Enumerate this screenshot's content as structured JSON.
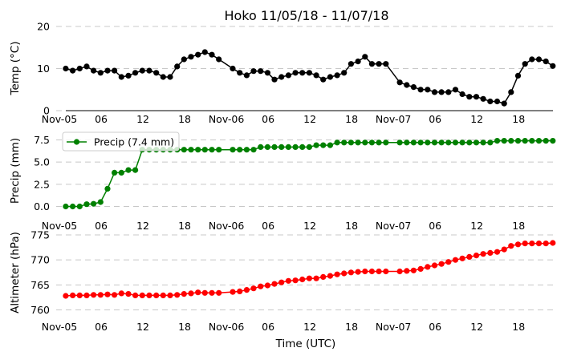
{
  "title": "Hoko 11/05/18 - 11/07/18",
  "xlabel": "Time (UTC)",
  "x_tick_labels": [
    "Nov-05",
    "06",
    "12",
    "18",
    "Nov-06",
    "06",
    "12",
    "18",
    "Nov-07",
    "06",
    "12",
    "18"
  ],
  "x_tick_times": [
    "2018-11-05T00:00",
    "2018-11-05T06:00",
    "2018-11-05T12:00",
    "2018-11-05T18:00",
    "2018-11-06T00:00",
    "2018-11-06T06:00",
    "2018-11-06T12:00",
    "2018-11-06T18:00",
    "2018-11-07T00:00",
    "2018-11-07T06:00",
    "2018-11-07T12:00",
    "2018-11-07T18:00"
  ],
  "colors": {
    "temp": "#000000",
    "precip": "#008000",
    "altimeter": "#ff0000",
    "grid": "#c8c8c8"
  },
  "chart_data": [
    {
      "type": "line",
      "ylabel": "Temp (°C)",
      "ylim": [
        0,
        20
      ],
      "yticks": [
        "0",
        "10",
        "20"
      ],
      "grid": true,
      "series": [
        {
          "values": [
            10,
            9.5,
            10,
            10.5,
            9.5,
            9,
            9.5,
            9.5,
            8,
            8.3,
            9,
            9.5,
            9.5,
            9,
            8,
            8,
            10.5,
            12.2,
            12.8,
            13.3,
            13.9,
            13.3,
            12.2,
            10,
            9,
            8.4,
            9.4,
            9.4,
            9,
            7.4,
            8,
            8.4,
            9,
            9,
            9,
            8.4,
            7.4,
            8,
            8.4,
            9,
            11.1,
            11.7,
            12.8,
            11.1,
            11.1,
            11.1,
            6.7,
            6.1,
            5.6,
            5,
            5,
            4.4,
            4.4,
            4.4,
            5,
            3.9,
            3.3,
            3.3,
            2.8,
            2.2,
            2.2,
            1.7,
            4.4,
            8.3,
            11.1,
            12.2,
            12.2,
            11.7,
            10.6
          ]
        }
      ]
    },
    {
      "type": "line",
      "ylabel": "Precip (mm)",
      "yticks": [
        "0.0",
        "2.5",
        "5.0",
        "7.5"
      ],
      "grid": true,
      "legend": "top-left",
      "series": [
        {
          "name": "Precip (7.4 mm)",
          "values": [
            0,
            0,
            0,
            0.25,
            0.3,
            0.5,
            2.0,
            3.8,
            3.8,
            4.1,
            4.1,
            6.4,
            6.4,
            6.4,
            6.4,
            6.4,
            6.4,
            6.4,
            6.4,
            6.4,
            6.4,
            6.4,
            6.4,
            6.4,
            6.4,
            6.4,
            6.4,
            6.7,
            6.7,
            6.7,
            6.7,
            6.7,
            6.7,
            6.7,
            6.7,
            6.9,
            6.9,
            6.9,
            7.2,
            7.2,
            7.2,
            7.2,
            7.2,
            7.2,
            7.2,
            7.2,
            7.2,
            7.2,
            7.2,
            7.2,
            7.2,
            7.2,
            7.2,
            7.2,
            7.2,
            7.2,
            7.2,
            7.2,
            7.2,
            7.2,
            7.4,
            7.4,
            7.4,
            7.4,
            7.4,
            7.4,
            7.4,
            7.4,
            7.4
          ]
        }
      ]
    },
    {
      "type": "line",
      "ylabel": "Altimeter (hPa)",
      "yticks": [
        "760",
        "765",
        "770",
        "775"
      ],
      "grid": true,
      "series": [
        {
          "values": [
            762.8,
            762.9,
            762.9,
            762.9,
            763.0,
            763.0,
            763.1,
            763.0,
            763.3,
            763.2,
            762.9,
            762.9,
            762.9,
            762.9,
            762.9,
            762.9,
            763.0,
            763.2,
            763.3,
            763.5,
            763.4,
            763.4,
            763.4,
            763.6,
            763.7,
            764.0,
            764.3,
            764.7,
            764.9,
            765.2,
            765.5,
            765.8,
            765.9,
            766.1,
            766.3,
            766.3,
            766.6,
            766.8,
            767.1,
            767.3,
            767.5,
            767.6,
            767.7,
            767.7,
            767.7,
            767.7,
            767.7,
            767.8,
            767.9,
            768.2,
            768.6,
            768.9,
            769.2,
            769.6,
            770.0,
            770.3,
            770.6,
            770.9,
            771.2,
            771.4,
            771.6,
            772.1,
            772.8,
            773.1,
            773.3,
            773.3,
            773.3,
            773.3,
            773.4
          ]
        }
      ]
    }
  ],
  "times_note_free": true
}
